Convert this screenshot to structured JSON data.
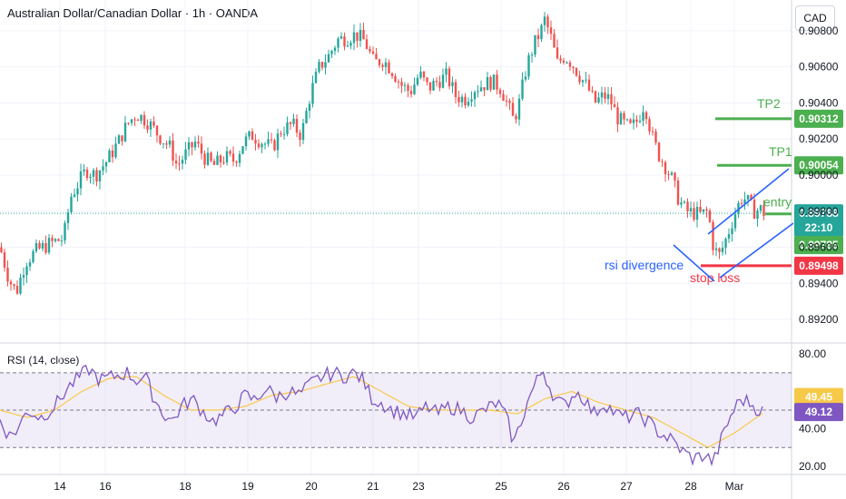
{
  "header": {
    "title": "Australian Dollar/Canadian Dollar · 1h · OANDA",
    "currency": "CAD"
  },
  "chart_data": {
    "type": "candlestick",
    "price_axis": {
      "ticks": [
        "0.90800",
        "0.90600",
        "0.90400",
        "0.90200",
        "0.90000",
        "0.89800",
        "0.89600",
        "0.89400",
        "0.89200"
      ],
      "tick_values": [
        0.908,
        0.906,
        0.904,
        0.902,
        0.9,
        0.898,
        0.896,
        0.894,
        0.892
      ],
      "range": [
        0.8912,
        0.9092
      ]
    },
    "time_axis": {
      "labels": [
        "14",
        "16",
        "18",
        "19",
        "20",
        "21",
        "23",
        "25",
        "26",
        "27",
        "28",
        "Mar"
      ]
    },
    "price_waypoints": [
      [
        0,
        0.896
      ],
      [
        10,
        0.8942
      ],
      [
        18,
        0.8935
      ],
      [
        28,
        0.8952
      ],
      [
        40,
        0.8958
      ],
      [
        55,
        0.8962
      ],
      [
        70,
        0.8965
      ],
      [
        78,
        0.8988
      ],
      [
        88,
        0.8997
      ],
      [
        95,
        0.9003
      ],
      [
        105,
        0.9
      ],
      [
        118,
        0.9008
      ],
      [
        130,
        0.9018
      ],
      [
        140,
        0.9028
      ],
      [
        150,
        0.9034
      ],
      [
        162,
        0.903
      ],
      [
        175,
        0.9022
      ],
      [
        188,
        0.9015
      ],
      [
        195,
        0.9005
      ],
      [
        205,
        0.9012
      ],
      [
        215,
        0.9018
      ],
      [
        225,
        0.901
      ],
      [
        235,
        0.9005
      ],
      [
        248,
        0.901
      ],
      [
        258,
        0.9008
      ],
      [
        268,
        0.9018
      ],
      [
        278,
        0.9022
      ],
      [
        290,
        0.9018
      ],
      [
        300,
        0.9015
      ],
      [
        310,
        0.9025
      ],
      [
        322,
        0.9028
      ],
      [
        332,
        0.9022
      ],
      [
        342,
        0.9045
      ],
      [
        352,
        0.906
      ],
      [
        362,
        0.9066
      ],
      [
        372,
        0.9075
      ],
      [
        382,
        0.9076
      ],
      [
        392,
        0.9078
      ],
      [
        402,
        0.9074
      ],
      [
        412,
        0.9062
      ],
      [
        422,
        0.9064
      ],
      [
        432,
        0.9058
      ],
      [
        442,
        0.905
      ],
      [
        452,
        0.9046
      ],
      [
        462,
        0.9056
      ],
      [
        472,
        0.9048
      ],
      [
        482,
        0.9052
      ],
      [
        492,
        0.9055
      ],
      [
        502,
        0.9044
      ],
      [
        512,
        0.9042
      ],
      [
        522,
        0.9048
      ],
      [
        532,
        0.905
      ],
      [
        542,
        0.9052
      ],
      [
        552,
        0.9048
      ],
      [
        560,
        0.9038
      ],
      [
        566,
        0.903
      ],
      [
        572,
        0.904
      ],
      [
        580,
        0.906
      ],
      [
        588,
        0.9072
      ],
      [
        596,
        0.908
      ],
      [
        600,
        0.9086
      ],
      [
        606,
        0.9078
      ],
      [
        614,
        0.9062
      ],
      [
        622,
        0.9066
      ],
      [
        630,
        0.9062
      ],
      [
        640,
        0.9054
      ],
      [
        648,
        0.9048
      ],
      [
        655,
        0.904
      ],
      [
        665,
        0.9044
      ],
      [
        672,
        0.9042
      ],
      [
        680,
        0.9032
      ],
      [
        688,
        0.9028
      ],
      [
        695,
        0.9026
      ],
      [
        702,
        0.903
      ],
      [
        710,
        0.904
      ],
      [
        718,
        0.9022
      ],
      [
        725,
        0.9012
      ],
      [
        732,
        0.9006
      ],
      [
        740,
        0.8998
      ],
      [
        748,
        0.8986
      ],
      [
        756,
        0.898
      ],
      [
        764,
        0.8979
      ],
      [
        772,
        0.8978
      ],
      [
        780,
        0.898
      ],
      [
        786,
        0.896
      ],
      [
        792,
        0.8955
      ],
      [
        798,
        0.8962
      ],
      [
        805,
        0.8972
      ],
      [
        812,
        0.8982
      ],
      [
        818,
        0.8988
      ],
      [
        824,
        0.8985
      ],
      [
        830,
        0.898
      ],
      [
        838,
        0.8981
      ],
      [
        842,
        0.8979
      ]
    ],
    "indicator_lines": [
      {
        "name": "TP2",
        "value": "0.90312",
        "price": 0.90312,
        "color": "#4caf50"
      },
      {
        "name": "TP1",
        "value": "0.90054",
        "price": 0.90054,
        "color": "#4caf50"
      },
      {
        "name": "entry",
        "value": "0.89785",
        "price": 0.89785,
        "color": "#4caf50"
      },
      {
        "name": "stop loss",
        "value": "0.89498",
        "price": 0.89498,
        "color": "#f23645"
      }
    ],
    "last_price": {
      "value": "0.89788",
      "countdown": "22:10",
      "price": 0.89788,
      "color": "#26a69a"
    },
    "annotation": {
      "text": "rsi divergence",
      "color": "#2962ff"
    },
    "rsi": {
      "title": "RSI (14, close)",
      "ticks": [
        "80.00",
        "40.00",
        "20.00"
      ],
      "tick_values": [
        80,
        40,
        20
      ],
      "range": [
        17,
        84
      ],
      "band": [
        30,
        70
      ],
      "mid": 50,
      "rsi_value": "49.12",
      "ma_value": "49.45",
      "rsi_color": "#7e57c2",
      "ma_color": "#f7c948",
      "rsi_waypoints": [
        [
          0,
          45
        ],
        [
          10,
          36
        ],
        [
          20,
          40
        ],
        [
          30,
          50
        ],
        [
          45,
          46
        ],
        [
          60,
          52
        ],
        [
          75,
          62
        ],
        [
          88,
          68
        ],
        [
          98,
          72
        ],
        [
          110,
          66
        ],
        [
          125,
          68
        ],
        [
          140,
          70
        ],
        [
          150,
          66
        ],
        [
          160,
          68
        ],
        [
          170,
          56
        ],
        [
          180,
          48
        ],
        [
          190,
          44
        ],
        [
          200,
          52
        ],
        [
          212,
          56
        ],
        [
          222,
          50
        ],
        [
          235,
          44
        ],
        [
          248,
          48
        ],
        [
          260,
          52
        ],
        [
          270,
          58
        ],
        [
          282,
          55
        ],
        [
          292,
          62
        ],
        [
          305,
          57
        ],
        [
          318,
          60
        ],
        [
          330,
          58
        ],
        [
          342,
          64
        ],
        [
          355,
          68
        ],
        [
          368,
          70
        ],
        [
          378,
          68
        ],
        [
          390,
          70
        ],
        [
          400,
          66
        ],
        [
          410,
          56
        ],
        [
          420,
          54
        ],
        [
          432,
          50
        ],
        [
          445,
          48
        ],
        [
          458,
          46
        ],
        [
          470,
          52
        ],
        [
          482,
          48
        ],
        [
          495,
          52
        ],
        [
          508,
          50
        ],
        [
          520,
          46
        ],
        [
          534,
          50
        ],
        [
          548,
          54
        ],
        [
          558,
          46
        ],
        [
          566,
          32
        ],
        [
          574,
          44
        ],
        [
          584,
          58
        ],
        [
          592,
          66
        ],
        [
          598,
          72
        ],
        [
          604,
          64
        ],
        [
          612,
          56
        ],
        [
          622,
          52
        ],
        [
          634,
          60
        ],
        [
          644,
          56
        ],
        [
          654,
          48
        ],
        [
          666,
          54
        ],
        [
          678,
          48
        ],
        [
          690,
          46
        ],
        [
          702,
          48
        ],
        [
          714,
          44
        ],
        [
          726,
          38
        ],
        [
          740,
          34
        ],
        [
          752,
          28
        ],
        [
          764,
          24
        ],
        [
          776,
          26
        ],
        [
          786,
          22
        ],
        [
          796,
          36
        ],
        [
          806,
          48
        ],
        [
          816,
          56
        ],
        [
          826,
          54
        ],
        [
          836,
          50
        ],
        [
          842,
          49
        ]
      ],
      "ma_waypoints": [
        [
          0,
          50
        ],
        [
          30,
          46
        ],
        [
          60,
          50
        ],
        [
          90,
          60
        ],
        [
          120,
          67
        ],
        [
          150,
          68
        ],
        [
          180,
          58
        ],
        [
          210,
          50
        ],
        [
          240,
          50
        ],
        [
          270,
          52
        ],
        [
          300,
          58
        ],
        [
          330,
          60
        ],
        [
          360,
          64
        ],
        [
          390,
          68
        ],
        [
          420,
          60
        ],
        [
          450,
          52
        ],
        [
          480,
          50
        ],
        [
          510,
          50
        ],
        [
          540,
          50
        ],
        [
          570,
          48
        ],
        [
          600,
          56
        ],
        [
          630,
          60
        ],
        [
          660,
          54
        ],
        [
          690,
          50
        ],
        [
          720,
          46
        ],
        [
          750,
          38
        ],
        [
          780,
          30
        ],
        [
          810,
          38
        ],
        [
          842,
          49
        ]
      ]
    }
  }
}
